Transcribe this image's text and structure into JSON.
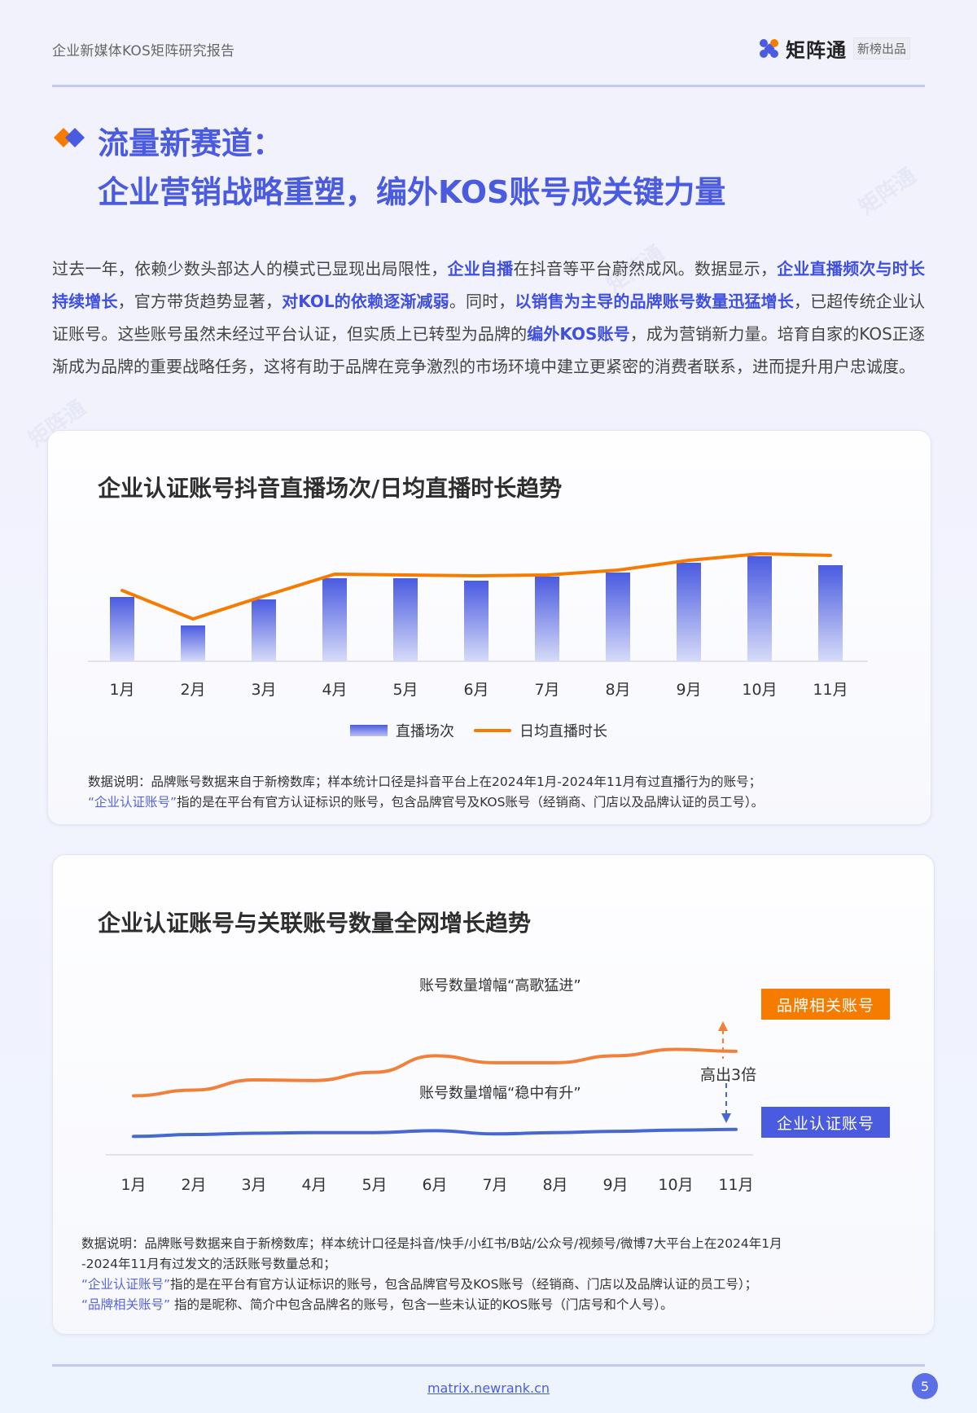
{
  "header": {
    "report_title": "企业新媒体KOS矩阵研究报告",
    "brand_name": "矩阵通",
    "brand_tag": "新榜出品"
  },
  "section": {
    "title_line1": "流量新赛道：",
    "title_line2": "企业营销战略重塑，编外KOS账号成关键力量"
  },
  "paragraph": {
    "segments": [
      {
        "text": "过去一年，依赖少数头部达人的模式已显现出局限性，",
        "bold": false
      },
      {
        "text": "企业自播",
        "bold": true
      },
      {
        "text": "在抖音等平台蔚然成风。数据显示，",
        "bold": false
      },
      {
        "text": "企业直播频次与时长持续增长",
        "bold": true
      },
      {
        "text": "，官方带货趋势显著，",
        "bold": false
      },
      {
        "text": "对KOL的依赖逐渐减弱",
        "bold": true
      },
      {
        "text": "。同时，",
        "bold": false
      },
      {
        "text": "以销售为主导的品牌账号数量迅猛增长",
        "bold": true
      },
      {
        "text": "，已超传统企业认证账号。这些账号虽然未经过平台认证，但实质上已转型为品牌的",
        "bold": false
      },
      {
        "text": "编外KOS账号",
        "bold": true
      },
      {
        "text": "，成为营销新力量。培育自家的KOS正逐渐成为品牌的重要战略任务，这将有助于品牌在竞争激烈的市场环境中建立更紧密的消费者联系，进而提升用户忠诚度。",
        "bold": false
      }
    ]
  },
  "chart1": {
    "title": "企业认证账号抖音直播场次/日均直播时长趋势",
    "legend": {
      "bar": "直播场次",
      "line": "日均直播时长"
    },
    "note_line1": "数据说明：品牌账号数据来自于新榜数库；样本统计口径是抖音平台上在2024年1月-2024年11月有过直播行为的账号；",
    "note_line2_highlight": "“企业认证账号”",
    "note_line2_rest": "指的是在平台有官方认证标识的账号，包含品牌官号及KOS账号（经销商、门店以及品牌认证的员工号）。"
  },
  "chart2": {
    "title": "企业认证账号与关联账号数量全网增长趋势",
    "annotation_top": "账号数量增幅“高歌猛进”",
    "annotation_bottom": "账号数量增幅“稳中有升”",
    "annotation_gap": "高出3倍",
    "tag_orange": "品牌相关账号",
    "tag_blue": "企业认证账号",
    "note_line1": "数据说明：品牌账号数据来自于新榜数库；样本统计口径是抖音/快手/小红书/B站/公众号/视频号/微博7大平台上在2024年1月",
    "note_line2": "-2024年11月有过发文的活跃账号数量总和；",
    "note_line3_highlight": "“企业认证账号”",
    "note_line3_rest": "指的是在平台有官方认证标识的账号，包含品牌官号及KOS账号（经销商、门店以及品牌认证的员工号）；",
    "note_line4_highlight": "“品牌相关账号”",
    "note_line4_rest": " 指的是昵称、简介中包含品牌名的账号，包含一些未认证的KOS账号（门店号和个人号）。"
  },
  "footer": {
    "link": "matrix.newrank.cn",
    "page_number": "5"
  },
  "watermark": "矩阵通",
  "colors": {
    "accent_blue": "#4a5be0",
    "accent_orange": "#f57c00",
    "text_dark": "#2e2e2e"
  },
  "chart_data": [
    {
      "type": "bar",
      "title": "企业认证账号抖音直播场次/日均直播时长趋势",
      "categories": [
        "1月",
        "2月",
        "3月",
        "4月",
        "5月",
        "6月",
        "7月",
        "8月",
        "9月",
        "10月",
        "11月"
      ],
      "series": [
        {
          "name": "直播场次",
          "type": "bar",
          "values": [
            79,
            44,
            76,
            102,
            102,
            99,
            104,
            109,
            121,
            129,
            118
          ]
        },
        {
          "name": "日均直播时长",
          "type": "line",
          "values": [
            87,
            52,
            80,
            107,
            106,
            105,
            106,
            112,
            124,
            132,
            130
          ]
        }
      ],
      "xlabel": "",
      "ylabel": "",
      "ylim": [
        0,
        140
      ],
      "grid": false,
      "legend_position": "bottom",
      "note": "relative values estimated from pixel heights; no y-axis shown"
    },
    {
      "type": "line",
      "title": "企业认证账号与关联账号数量全网增长趋势",
      "categories": [
        "1月",
        "2月",
        "3月",
        "4月",
        "5月",
        "6月",
        "7月",
        "8月",
        "9月",
        "10月",
        "11月"
      ],
      "series": [
        {
          "name": "品牌相关账号",
          "values": [
            93,
            102,
            118,
            117,
            130,
            156,
            145,
            145,
            156,
            166,
            163
          ]
        },
        {
          "name": "企业认证账号",
          "values": [
            29,
            32,
            34,
            35,
            35,
            38,
            33,
            35,
            37,
            39,
            40
          ]
        }
      ],
      "annotations": [
        "账号数量增幅“高歌猛进”",
        "账号数量增幅“稳中有升”",
        "高出3倍"
      ],
      "xlabel": "",
      "ylabel": "",
      "ylim": [
        0,
        180
      ],
      "grid": false,
      "legend_position": "right (labels)",
      "note": "relative values estimated from pixel heights; no y-axis shown"
    }
  ]
}
